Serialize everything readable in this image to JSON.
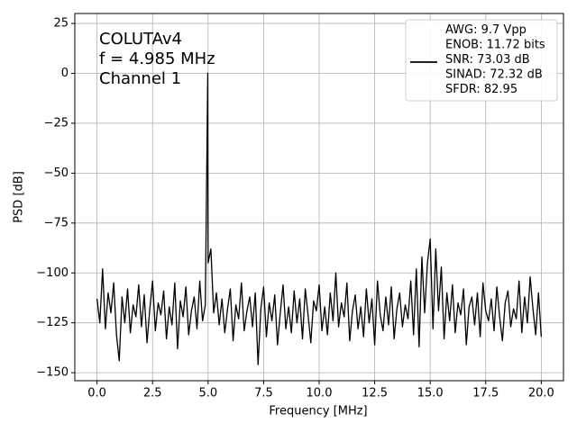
{
  "chart_data": {
    "type": "line",
    "xlabel": "Frequency [MHz]",
    "ylabel": "PSD [dB]",
    "annotations": [
      "COLUTAv4",
      "f = 4.985 MHz",
      "Channel 1"
    ],
    "x": [
      0,
      0.125,
      0.25,
      0.375,
      0.5,
      0.625,
      0.75,
      0.875,
      1,
      1.125,
      1.25,
      1.375,
      1.5,
      1.625,
      1.75,
      1.875,
      2,
      2.125,
      2.25,
      2.375,
      2.5,
      2.625,
      2.75,
      2.875,
      3,
      3.125,
      3.25,
      3.375,
      3.5,
      3.625,
      3.75,
      3.875,
      4,
      4.125,
      4.25,
      4.375,
      4.5,
      4.625,
      4.75,
      4.875,
      4.985,
      5,
      5.125,
      5.25,
      5.375,
      5.5,
      5.625,
      5.75,
      5.875,
      6,
      6.125,
      6.25,
      6.375,
      6.5,
      6.625,
      6.75,
      6.875,
      7,
      7.125,
      7.25,
      7.375,
      7.5,
      7.625,
      7.75,
      7.875,
      8,
      8.125,
      8.25,
      8.375,
      8.5,
      8.625,
      8.75,
      8.875,
      9,
      9.125,
      9.25,
      9.375,
      9.5,
      9.625,
      9.75,
      9.875,
      10,
      10.125,
      10.25,
      10.375,
      10.5,
      10.625,
      10.75,
      10.875,
      11,
      11.125,
      11.25,
      11.375,
      11.5,
      11.625,
      11.75,
      11.875,
      12,
      12.125,
      12.25,
      12.375,
      12.5,
      12.625,
      12.75,
      12.875,
      13,
      13.125,
      13.25,
      13.375,
      13.5,
      13.625,
      13.75,
      13.875,
      14,
      14.125,
      14.25,
      14.375,
      14.5,
      14.625,
      14.75,
      14.875,
      15,
      15.125,
      15.25,
      15.375,
      15.5,
      15.625,
      15.75,
      15.875,
      16,
      16.125,
      16.25,
      16.375,
      16.5,
      16.625,
      16.75,
      16.875,
      17,
      17.125,
      17.25,
      17.375,
      17.5,
      17.625,
      17.75,
      17.875,
      18,
      18.125,
      18.25,
      18.375,
      18.5,
      18.625,
      18.75,
      18.875,
      19,
      19.125,
      19.25,
      19.375,
      19.5,
      19.625,
      19.75,
      19.875,
      20
    ],
    "series": [
      {
        "name": "AWG: 9.7 Vpp\nENOB: 11.72 bits\nSNR: 73.03 dB\nSINAD: 72.32 dB\nSFDR: 82.95",
        "color": "#000000",
        "values": [
          -113,
          -125,
          -98,
          -128,
          -110,
          -120,
          -105,
          -131,
          -144,
          -112,
          -125,
          -108,
          -130,
          -116,
          -122,
          -106,
          -127,
          -111,
          -135,
          -118,
          -104,
          -129,
          -115,
          -121,
          -109,
          -133,
          -117,
          -126,
          -105,
          -138,
          -114,
          -122,
          -107,
          -131,
          -119,
          -112,
          -128,
          -104,
          -124,
          -116,
          0,
          -95,
          -88,
          -120,
          -110,
          -126,
          -113,
          -130,
          -118,
          -108,
          -134,
          -116,
          -123,
          -105,
          -129,
          -119,
          -112,
          -127,
          -110,
          -146,
          -118,
          -107,
          -132,
          -115,
          -124,
          -111,
          -136,
          -120,
          -106,
          -128,
          -117,
          -130,
          -109,
          -125,
          -113,
          -133,
          -108,
          -121,
          -135,
          -114,
          -119,
          -106,
          -129,
          -117,
          -131,
          -110,
          -124,
          -100,
          -127,
          -115,
          -122,
          -105,
          -134,
          -119,
          -111,
          -128,
          -117,
          -132,
          -108,
          -125,
          -113,
          -136,
          -104,
          -121,
          -129,
          -112,
          -126,
          -107,
          -133,
          -118,
          -110,
          -127,
          -116,
          -123,
          -104,
          -131,
          -98,
          -137,
          -92,
          -120,
          -95,
          -83,
          -128,
          -88,
          -119,
          -97,
          -133,
          -110,
          -124,
          -106,
          -130,
          -115,
          -121,
          -108,
          -136,
          -117,
          -112,
          -126,
          -110,
          -132,
          -105,
          -119,
          -124,
          -113,
          -129,
          -107,
          -122,
          -134,
          -115,
          -109,
          -127,
          -118,
          -123,
          -104,
          -130,
          -112,
          -125,
          -102,
          -118,
          -131,
          -110,
          -132
        ]
      }
    ],
    "xlim": [
      -1,
      21
    ],
    "ylim": [
      -154,
      30
    ],
    "xticks": [
      {
        "value": 0,
        "label": "0.0"
      },
      2.5,
      {
        "value": 5,
        "label": "5.0"
      },
      7.5,
      {
        "value": 10,
        "label": "10.0"
      },
      12.5,
      {
        "value": 15,
        "label": "15.0"
      },
      17.5,
      {
        "value": 20,
        "label": "20.0"
      }
    ],
    "yticks": [
      25,
      0,
      {
        "value": -25,
        "label": "−25"
      },
      {
        "value": -50,
        "label": "−50"
      },
      {
        "value": -75,
        "label": "−75"
      },
      {
        "value": -100,
        "label": "−100"
      },
      {
        "value": -125,
        "label": "−125"
      },
      {
        "value": -150,
        "label": "−150"
      }
    ],
    "grid": true,
    "legend": "upper right"
  }
}
